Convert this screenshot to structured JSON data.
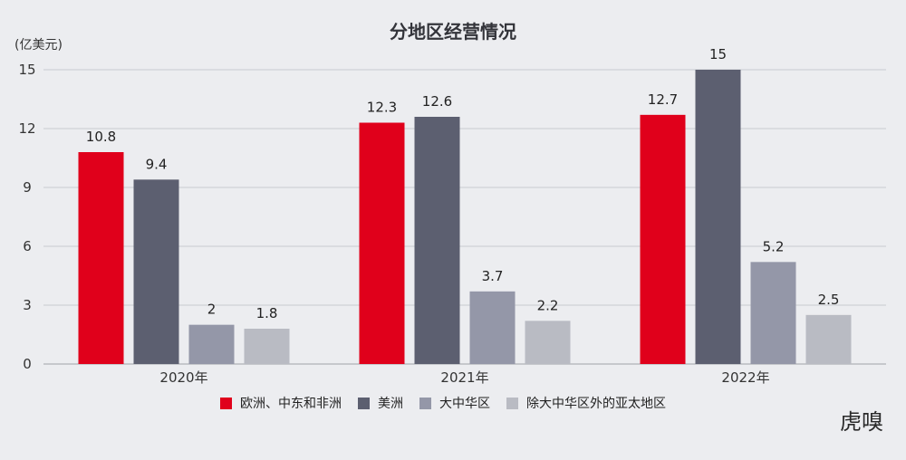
{
  "chart_data": {
    "type": "bar",
    "title": "分地区经营情况",
    "ylabel": "(亿美元)",
    "xlabel": "",
    "ylim": [
      0,
      15
    ],
    "yticks": [
      0,
      3,
      6,
      9,
      12,
      15
    ],
    "grid": true,
    "legend_position": "bottom",
    "categories": [
      "2020年",
      "2021年",
      "2022年"
    ],
    "series": [
      {
        "name": "欧洲、中东和非洲",
        "color": "#e0001b",
        "values": [
          10.8,
          12.3,
          12.7
        ],
        "labels": [
          "10.8",
          "12.3",
          "12.7"
        ]
      },
      {
        "name": "美洲",
        "color": "#5c5f70",
        "values": [
          9.4,
          12.6,
          15
        ],
        "labels": [
          "9.4",
          "12.6",
          "15"
        ]
      },
      {
        "name": "大中华区",
        "color": "#9497a8",
        "values": [
          2,
          3.7,
          5.2
        ],
        "labels": [
          "2",
          "3.7",
          "5.2"
        ]
      },
      {
        "name": "除大中华区外的亚太地区",
        "color": "#b9bbc3",
        "values": [
          1.8,
          2.2,
          2.5
        ],
        "labels": [
          "1.8",
          "2.2",
          "2.5"
        ]
      }
    ]
  },
  "watermark": {
    "text": "虎嗅"
  }
}
